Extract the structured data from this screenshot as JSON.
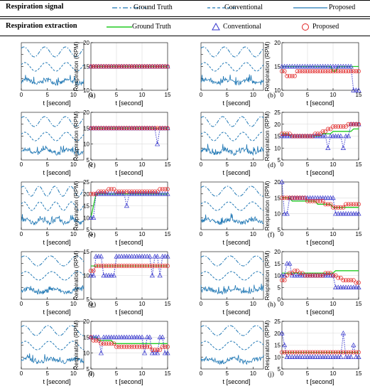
{
  "legend": {
    "signal": {
      "title": "Respiration signal",
      "items": [
        {
          "label": "Ground Truth",
          "style": "dash-dot",
          "color": "#1f77b4"
        },
        {
          "label": "Conventional",
          "style": "dashed",
          "color": "#1f77b4"
        },
        {
          "label": "Proposed",
          "style": "solid",
          "color": "#1f77b4"
        }
      ]
    },
    "extraction": {
      "title": "Respiration extraction",
      "items": [
        {
          "label": "Ground Truth",
          "style": "solid",
          "color": "#22cc22"
        },
        {
          "label": "Conventional",
          "style": "triangle-dotted",
          "color": "#3333cc"
        },
        {
          "label": "Proposed",
          "style": "circle-dotted",
          "color": "#e02020"
        }
      ]
    }
  },
  "chart_data": {
    "type": "line",
    "signal_axes": {
      "xlabel": "t [second]",
      "xlim": [
        0,
        12
      ],
      "xticks": [
        0,
        5,
        10
      ]
    },
    "rpm_axes": {
      "xlabel": "t [second]",
      "ylabel": "Respiration (RPM)",
      "xlim": [
        0,
        15
      ],
      "xticks": [
        0,
        5,
        10,
        15
      ],
      "grid": true
    },
    "x": [
      0,
      0.5,
      1,
      1.5,
      2,
      2.5,
      3,
      3.5,
      4,
      4.5,
      5,
      5.5,
      6,
      6.5,
      7,
      7.5,
      8,
      8.5,
      9,
      9.5,
      10,
      10.5,
      11,
      11.5,
      12,
      12.5,
      13,
      13.5,
      14,
      14.5,
      15
    ],
    "panels": [
      {
        "label": "(a)",
        "ylim": [
          10,
          20
        ],
        "yticks": [
          10,
          15,
          20
        ],
        "signal_freq": 0.25,
        "ground_truth": [
          15,
          15,
          15,
          15,
          15,
          15,
          15,
          15,
          15,
          15,
          15,
          15,
          15,
          15,
          15,
          15,
          15,
          15,
          15,
          15,
          15,
          15,
          15,
          15,
          15,
          15,
          15,
          15,
          15,
          15,
          15
        ],
        "conventional": [
          15,
          15,
          15,
          15,
          15,
          15,
          15,
          15,
          15,
          15,
          15,
          15,
          15,
          15,
          15,
          15,
          15,
          15,
          15,
          15,
          15,
          15,
          15,
          15,
          15,
          15,
          15,
          15,
          15,
          15,
          15
        ],
        "proposed": [
          15,
          15,
          15,
          15,
          15,
          15,
          15,
          15,
          15,
          15,
          15,
          15,
          15,
          15,
          15,
          15,
          15,
          15,
          15,
          15,
          15,
          15,
          15,
          15,
          15,
          15,
          15,
          15,
          15,
          15,
          15
        ]
      },
      {
        "label": "(b)",
        "ylim": [
          10,
          20
        ],
        "yticks": [
          10,
          15,
          20
        ],
        "signal_freq": 0.25,
        "ground_truth": [
          15,
          15,
          15,
          15,
          15,
          15,
          15,
          15,
          15,
          15,
          15,
          15,
          15,
          15,
          15,
          15,
          15,
          15,
          15,
          15,
          14,
          14,
          15,
          15,
          15,
          15,
          15,
          15,
          15,
          15,
          15
        ],
        "conventional": [
          15,
          15,
          15,
          15,
          15,
          15,
          15,
          15,
          15,
          15,
          15,
          15,
          15,
          15,
          15,
          15,
          15,
          15,
          15,
          15,
          15,
          15,
          15,
          15,
          15,
          15,
          15,
          15,
          10,
          10,
          10
        ],
        "proposed": [
          14,
          14,
          13,
          13,
          13,
          13,
          14,
          14,
          14,
          14,
          14,
          14,
          14,
          14,
          14,
          14,
          14,
          14,
          14,
          14,
          14,
          14,
          14,
          14,
          14,
          14,
          14,
          14,
          14,
          14,
          14
        ]
      },
      {
        "label": "(c)",
        "ylim": [
          5,
          20
        ],
        "yticks": [
          5,
          10,
          15,
          20
        ],
        "signal_freq": 0.25,
        "ground_truth": [
          15,
          15,
          15,
          15,
          15,
          15,
          15,
          15,
          15,
          15,
          15,
          15,
          15,
          15,
          15,
          15,
          15,
          15,
          15,
          15,
          15,
          15,
          15,
          15,
          15,
          15,
          15,
          15,
          15,
          15,
          15
        ],
        "conventional": [
          15,
          15,
          15,
          15,
          15,
          15,
          15,
          15,
          15,
          15,
          15,
          15,
          15,
          15,
          15,
          15,
          15,
          15,
          15,
          15,
          15,
          15,
          15,
          15,
          15,
          15,
          10,
          15,
          15,
          15,
          15
        ],
        "proposed": [
          15,
          15,
          15,
          15,
          15,
          15,
          15,
          15,
          15,
          15,
          15,
          15,
          15,
          15,
          15,
          15,
          15,
          15,
          15,
          15,
          15,
          15,
          15,
          15,
          15,
          15,
          15,
          15,
          15,
          15,
          15
        ]
      },
      {
        "label": "(d)",
        "ylim": [
          5,
          25
        ],
        "yticks": [
          5,
          10,
          15,
          20,
          25
        ],
        "signal_freq": 0.27,
        "ground_truth": [
          16,
          16,
          16,
          15,
          15,
          15,
          15,
          15,
          15,
          15,
          15,
          15,
          15,
          15,
          15,
          15,
          16,
          16,
          16,
          16,
          17,
          17,
          17,
          17,
          17,
          17,
          17,
          17,
          18,
          18,
          18
        ],
        "conventional": [
          15,
          15,
          15,
          15,
          15,
          15,
          15,
          15,
          15,
          15,
          15,
          15,
          15,
          15,
          15,
          15,
          15,
          15,
          10,
          15,
          15,
          15,
          15,
          15,
          10,
          15,
          15,
          20,
          20,
          20,
          20
        ],
        "proposed": [
          16,
          16,
          16,
          16,
          15,
          15,
          15,
          15,
          15,
          15,
          15,
          15,
          15,
          16,
          16,
          16,
          17,
          17,
          18,
          18,
          19,
          19,
          19,
          19,
          19,
          19,
          20,
          20,
          20,
          20,
          20
        ]
      },
      {
        "label": "(e)",
        "ylim": [
          5,
          25
        ],
        "yticks": [
          5,
          10,
          15,
          20,
          25
        ],
        "signal_freq": 0.33,
        "ground_truth": [
          10,
          15,
          20,
          20,
          20,
          20,
          20,
          20,
          20,
          20,
          20,
          20,
          20,
          20,
          20,
          20,
          20,
          20,
          20,
          20,
          20,
          20,
          20,
          20,
          20,
          20,
          20,
          20,
          20,
          20,
          20
        ],
        "conventional": [
          10,
          10,
          20,
          20,
          20,
          20,
          20,
          20,
          20,
          20,
          20,
          20,
          20,
          20,
          15,
          20,
          20,
          20,
          20,
          20,
          20,
          20,
          20,
          20,
          20,
          20,
          20,
          20,
          20,
          20,
          20
        ],
        "proposed": [
          20,
          20,
          20,
          21,
          21,
          21,
          21,
          22,
          22,
          22,
          21,
          21,
          21,
          21,
          21,
          21,
          21,
          21,
          21,
          21,
          21,
          21,
          21,
          21,
          21,
          21,
          21,
          22,
          22,
          22,
          22
        ]
      },
      {
        "label": "(f)",
        "ylim": [
          5,
          20
        ],
        "yticks": [
          5,
          10,
          15,
          20
        ],
        "signal_freq": 0.22,
        "ground_truth": [
          15,
          15,
          15,
          15,
          14,
          14,
          14,
          14,
          14,
          14,
          14,
          14,
          14,
          14,
          13,
          13,
          13,
          13,
          13,
          13,
          12,
          12,
          12,
          12,
          12,
          12,
          12,
          12,
          12,
          12,
          12
        ],
        "conventional": [
          20,
          10,
          10,
          15,
          15,
          15,
          15,
          15,
          15,
          15,
          15,
          15,
          15,
          15,
          15,
          15,
          15,
          15,
          15,
          15,
          15,
          10,
          10,
          10,
          10,
          10,
          10,
          10,
          10,
          10,
          10
        ],
        "proposed": [
          15,
          15,
          15,
          15,
          15,
          15,
          15,
          15,
          15,
          15,
          14,
          14,
          14,
          14,
          14,
          14,
          14,
          13,
          13,
          13,
          12,
          12,
          12,
          12,
          12,
          13,
          13,
          13,
          13,
          13,
          13
        ]
      },
      {
        "label": "(g)",
        "ylim": [
          5,
          15
        ],
        "yticks": [
          5,
          10,
          15
        ],
        "signal_freq": 0.2,
        "ground_truth": [
          12,
          12,
          12,
          12,
          12,
          12,
          12,
          12,
          12,
          12,
          12,
          12,
          12,
          12,
          12,
          12,
          12,
          12,
          12,
          12,
          12,
          12,
          12,
          12,
          12,
          12,
          12,
          12,
          12,
          12,
          12
        ],
        "conventional": [
          10,
          10,
          14,
          14,
          14,
          10,
          10,
          10,
          10,
          10,
          14,
          14,
          14,
          14,
          14,
          14,
          14,
          14,
          14,
          14,
          14,
          14,
          14,
          14,
          10,
          14,
          14,
          10,
          14,
          14,
          14
        ],
        "proposed": [
          11,
          11,
          12,
          12,
          12,
          12,
          12,
          12,
          12,
          12,
          12,
          12,
          12,
          12,
          12,
          12,
          12,
          12,
          12,
          12,
          12,
          12,
          12,
          12,
          12,
          12,
          12,
          12,
          12,
          12,
          12
        ]
      },
      {
        "label": "(h)",
        "ylim": [
          0,
          20
        ],
        "yticks": [
          0,
          5,
          10,
          15,
          20
        ],
        "signal_freq": 0.2,
        "ground_truth": [
          11,
          11,
          11,
          11,
          11,
          11,
          11,
          11,
          11,
          11,
          11,
          11,
          11,
          11,
          11,
          11,
          11,
          11,
          11,
          11,
          11,
          12,
          12,
          12,
          12,
          12,
          12,
          12,
          12,
          12,
          12
        ],
        "conventional": [
          10,
          10,
          15,
          15,
          10,
          10,
          10,
          10,
          10,
          10,
          10,
          10,
          10,
          10,
          10,
          10,
          10,
          10,
          10,
          10,
          10,
          5,
          5,
          5,
          5,
          5,
          5,
          5,
          5,
          5,
          5
        ],
        "proposed": [
          8,
          8,
          10,
          11,
          11,
          12,
          12,
          11,
          11,
          10,
          10,
          10,
          10,
          10,
          10,
          10,
          10,
          11,
          11,
          11,
          10,
          10,
          9,
          9,
          8,
          8,
          8,
          8,
          8,
          7,
          7
        ]
      },
      {
        "label": "(i)",
        "ylim": [
          5,
          20
        ],
        "yticks": [
          5,
          10,
          15,
          20
        ],
        "signal_freq": 0.22,
        "ground_truth": [
          15,
          15,
          15,
          14,
          14,
          14,
          14,
          14,
          14,
          13,
          13,
          13,
          13,
          13,
          13,
          13,
          13,
          13,
          13,
          13,
          13,
          13,
          13,
          13,
          13,
          13,
          13,
          13,
          13,
          13,
          13
        ],
        "conventional": [
          15,
          15,
          15,
          15,
          10,
          15,
          15,
          15,
          15,
          15,
          15,
          15,
          15,
          15,
          15,
          15,
          15,
          15,
          15,
          15,
          15,
          10,
          15,
          15,
          10,
          10,
          10,
          15,
          15,
          10,
          10
        ],
        "proposed": [
          15,
          14,
          14,
          14,
          13,
          13,
          13,
          13,
          13,
          13,
          12,
          12,
          12,
          12,
          12,
          12,
          12,
          12,
          12,
          12,
          12,
          12,
          12,
          12,
          11,
          11,
          11,
          11,
          12,
          12,
          12
        ]
      },
      {
        "label": "(j)",
        "ylim": [
          5,
          25
        ],
        "yticks": [
          5,
          10,
          15,
          20,
          25
        ],
        "signal_freq": 0.2,
        "ground_truth": [
          12,
          12,
          12,
          12,
          12,
          12,
          12,
          12,
          12,
          12,
          12,
          12,
          12,
          12,
          12,
          12,
          12,
          12,
          12,
          12,
          12,
          12,
          12,
          12,
          12,
          12,
          12,
          12,
          12,
          12,
          12
        ],
        "conventional": [
          20,
          15,
          10,
          10,
          10,
          10,
          10,
          10,
          10,
          10,
          10,
          10,
          10,
          10,
          10,
          10,
          10,
          10,
          10,
          10,
          10,
          10,
          10,
          10,
          20,
          10,
          10,
          10,
          15,
          10,
          10
        ],
        "proposed": [
          12,
          12,
          12,
          12,
          12,
          12,
          12,
          12,
          12,
          12,
          12,
          12,
          12,
          12,
          12,
          12,
          12,
          12,
          12,
          12,
          12,
          12,
          12,
          12,
          12,
          12,
          12,
          12,
          12,
          12,
          12
        ]
      }
    ]
  }
}
